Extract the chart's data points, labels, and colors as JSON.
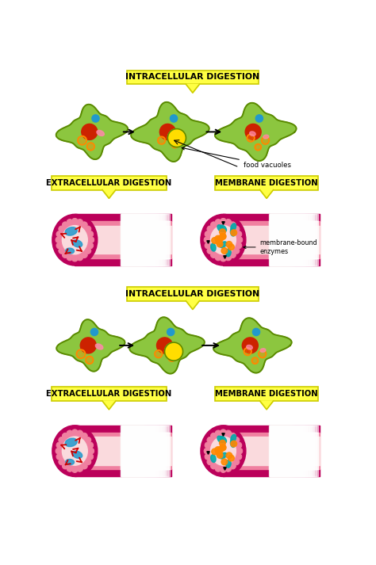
{
  "bg_color": "#ffffff",
  "title1": "INTRACELLULAR DIGESTION",
  "title2_left": "EXTRACELLULAR DIGESTION",
  "title2_right": "MEMBRANE DIGESTION",
  "title3": "INTRACELLULAR DIGESTION",
  "title4_left": "EXTRACELLULAR DIGESTION",
  "title4_right": "MEMBRANE DIGESTION",
  "label_food_vacuoles": "food vacuoles",
  "label_membrane_enzymes": "membrane-bound\nenzymes",
  "cell_green": "#8CC63F",
  "cell_green_dark": "#5A8A00",
  "nucleus_red": "#CC2200",
  "vacuole_yellow": "#FFDD00",
  "blue_dot": "#2299CC",
  "pink_dot": "#FF88AA",
  "orange_ring": "#FF8800",
  "tube_magenta": "#BB005A",
  "tube_pink": "#F080A0",
  "tube_light": "#FADADD",
  "tube_vlight": "#FFE8EE",
  "enzyme_teal": "#00AAAA",
  "enzyme_orange": "#FF8800",
  "red_arrow": "#CC0000",
  "label_yellow": "#FFFF44",
  "label_yellow_border": "#CCCC00"
}
